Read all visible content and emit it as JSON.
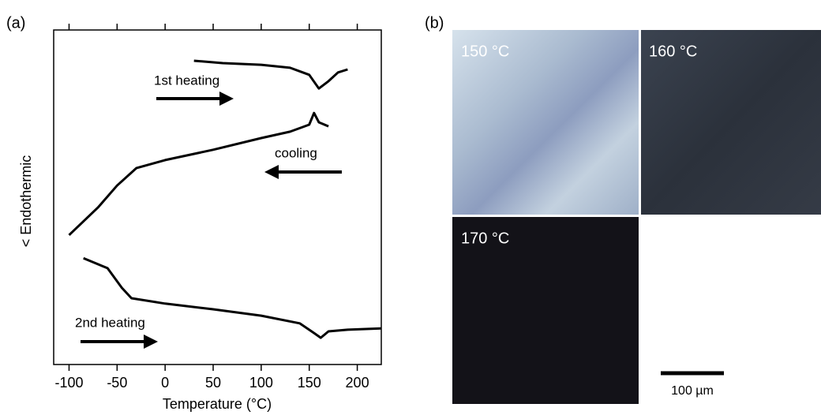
{
  "chart_data": {
    "type": "line",
    "panel_label": "(a)",
    "x_label": "Temperature (°C)",
    "y_label": "< Endothermic",
    "xlim": [
      -116,
      225
    ],
    "ylim": [
      0,
      100
    ],
    "xticks": [
      -100,
      -50,
      0,
      50,
      100,
      150,
      200
    ],
    "series": [
      {
        "name": "1st heating",
        "color": "#000000",
        "x": [
          30,
          60,
          100,
          130,
          150,
          160,
          170,
          180,
          190
        ],
        "values": [
          90.8,
          90.1,
          89.6,
          88.7,
          86.6,
          82.5,
          84.7,
          87.3,
          88.2
        ]
      },
      {
        "name": "cooling",
        "color": "#000000",
        "x": [
          -100,
          -70,
          -50,
          -30,
          0,
          50,
          100,
          130,
          150,
          155,
          160,
          170
        ],
        "values": [
          38.7,
          46.9,
          53.5,
          58.7,
          61.1,
          64.2,
          67.7,
          69.6,
          71.7,
          75.2,
          72.4,
          71.2
        ]
      },
      {
        "name": "2nd heating",
        "color": "#000000",
        "x": [
          -85,
          -60,
          -45,
          -35,
          0,
          50,
          100,
          140,
          155,
          162,
          170,
          190,
          225
        ],
        "values": [
          31.8,
          28.8,
          22.9,
          19.8,
          18.2,
          16.5,
          14.6,
          12.3,
          9.4,
          8.0,
          9.9,
          10.4,
          10.8
        ]
      }
    ]
  },
  "panel_b": {
    "panel_label": "(b)",
    "images": [
      {
        "label": "150 °C"
      },
      {
        "label": "160 °C"
      },
      {
        "label": "170 °C"
      }
    ],
    "scale_bar": "100 µm"
  }
}
